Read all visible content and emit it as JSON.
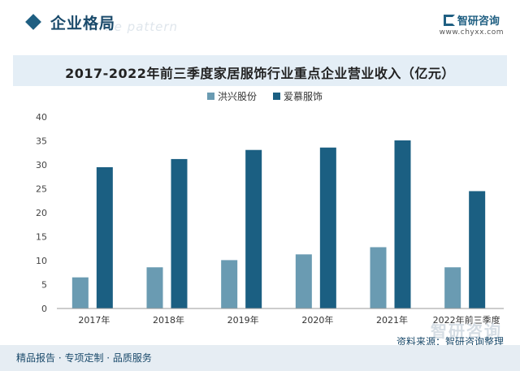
{
  "header": {
    "title": "企业格局",
    "bg_text": "The pattern",
    "brand_name": "智研咨询",
    "brand_url": "www.chyxx.com"
  },
  "chart_data": {
    "type": "bar",
    "title": "2017-2022年前三季度家居服饰行业重点企业营业收入（亿元）",
    "categories": [
      "2017年",
      "2018年",
      "2019年",
      "2020年",
      "2021年",
      "2022年前三季度"
    ],
    "series": [
      {
        "name": "洪兴股份",
        "color": "#6a9bb2",
        "values": [
          6.5,
          8.6,
          10.1,
          11.3,
          12.8,
          8.6
        ]
      },
      {
        "name": "爱慕服饰",
        "color": "#1b5f82",
        "values": [
          29.5,
          31.2,
          33.1,
          33.6,
          35.1,
          24.5
        ]
      }
    ],
    "ylim": [
      0,
      40
    ],
    "yticks": [
      0,
      5,
      10,
      15,
      20,
      25,
      30,
      35,
      40
    ],
    "grid": false,
    "legend_position": "top"
  },
  "footer": {
    "left": "精品报告 · 专项定制 · 品质服务",
    "source": "资料来源：智研咨询整理",
    "watermark": "智研咨询"
  }
}
